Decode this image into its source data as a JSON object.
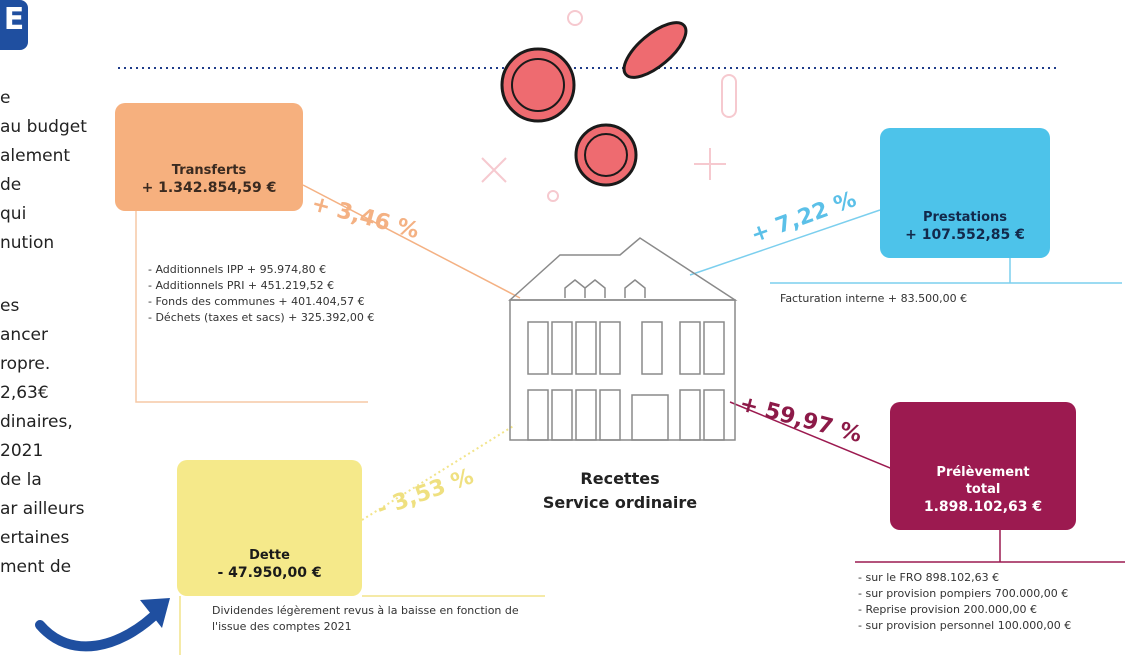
{
  "badge": "E",
  "intro": {
    "paragraphs": [
      [
        "e",
        "au budget",
        "alement",
        "de",
        "qui",
        "nution"
      ],
      [
        "es",
        "ancer",
        "ropre.",
        "2,63€",
        "dinaires,",
        "2021",
        "de la",
        "ar ailleurs",
        "ertaines",
        "ment de"
      ]
    ]
  },
  "nodes": [
    {
      "title": "Transferts",
      "amount": "+ 1.342.854,59 €",
      "change": "+ 3,46 %",
      "details": [
        "- Additionnels IPP + 95.974,80 €",
        "- Additionnels PRI + 451.219,52 €",
        "- Fonds des communes + 401.404,57 €",
        "- Déchets (taxes et sacs) + 325.392,00 €"
      ]
    },
    {
      "title": "Prestations",
      "amount": "+ 107.552,85 €",
      "change": "+ 7,22 %",
      "details": [
        "Facturation interne + 83.500,00 €"
      ]
    },
    {
      "title": "Prélèvement total",
      "amount": "1.898.102,63 €",
      "change": "+ 59,97 %",
      "details": [
        "- sur le FRO 898.102,63 €",
        "- sur provision pompiers 700.000,00 €",
        "- Reprise provision 200.000,00 €",
        "- sur provision personnel 100.000,00 €"
      ]
    },
    {
      "title": "Dette",
      "amount": "- 47.950,00 €",
      "change": "- 3,53 %",
      "details": [
        "Dividendes légèrement revus à la baisse en fonction de l'issue des comptes 2021"
      ]
    }
  ],
  "center": {
    "lines": [
      "Recettes",
      "Service ordinaire"
    ]
  }
}
